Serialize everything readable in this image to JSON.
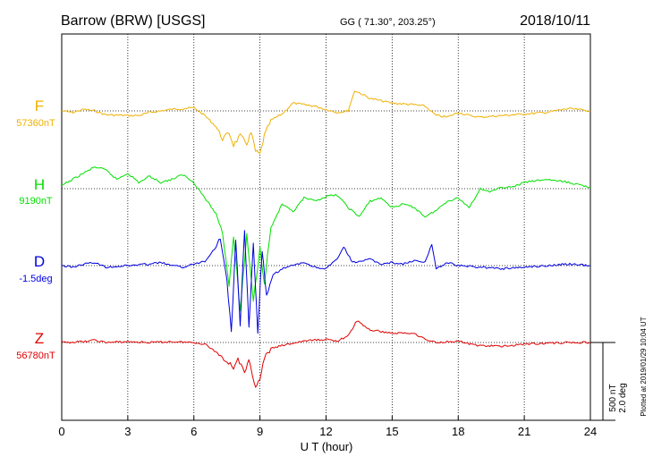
{
  "header": {
    "station": "Barrow (BRW)  [USGS]",
    "coords": "GG ( 71.30°, 203.25°)",
    "date": "2018/10/11"
  },
  "side_note": "Plotted at 2019/01/29 10:04 UT",
  "scale_note": {
    "nt": "500 nT",
    "deg": "2.0 deg"
  },
  "colors": {
    "F": "#f0b000",
    "H": "#00e000",
    "D": "#0000e0",
    "Z": "#e00000"
  },
  "chart_data": {
    "type": "line",
    "title": "Barrow (BRW)  [USGS]",
    "xlabel": "U T (hour)",
    "xlim": [
      0,
      24
    ],
    "xticks": [
      0,
      3,
      6,
      9,
      12,
      15,
      18,
      21,
      24
    ],
    "grid": true,
    "series": [
      {
        "name": "F",
        "baseline_label": "57360nT",
        "baseline_value": 57360,
        "unit": "nT",
        "color": "#f0b000",
        "points": [
          [
            0,
            0
          ],
          [
            0.5,
            -10
          ],
          [
            1,
            10
          ],
          [
            1.5,
            0
          ],
          [
            2,
            -25
          ],
          [
            3,
            -30
          ],
          [
            3.5,
            -30
          ],
          [
            4,
            -10
          ],
          [
            5,
            10
          ],
          [
            6,
            20
          ],
          [
            6.5,
            -30
          ],
          [
            7,
            -100
          ],
          [
            7.3,
            -180
          ],
          [
            7.6,
            -140
          ],
          [
            7.8,
            -220
          ],
          [
            8.1,
            -160
          ],
          [
            8.4,
            -210
          ],
          [
            8.6,
            -140
          ],
          [
            8.8,
            -260
          ],
          [
            9.0,
            -280
          ],
          [
            9.2,
            -160
          ],
          [
            9.5,
            -60
          ],
          [
            10,
            -20
          ],
          [
            10.5,
            50
          ],
          [
            11,
            40
          ],
          [
            11.5,
            30
          ],
          [
            12,
            10
          ],
          [
            12.5,
            -10
          ],
          [
            13,
            0
          ],
          [
            13.3,
            130
          ],
          [
            13.6,
            110
          ],
          [
            14,
            80
          ],
          [
            15,
            50
          ],
          [
            16,
            40
          ],
          [
            16.5,
            30
          ],
          [
            17,
            -30
          ],
          [
            17.5,
            -40
          ],
          [
            18,
            -10
          ],
          [
            18.5,
            -30
          ],
          [
            19,
            -40
          ],
          [
            20,
            -30
          ],
          [
            21,
            -20
          ],
          [
            22,
            -10
          ],
          [
            23,
            15
          ],
          [
            24,
            0
          ]
        ]
      },
      {
        "name": "H",
        "baseline_label": "9190nT",
        "baseline_value": 9190,
        "unit": "nT",
        "color": "#00e000",
        "points": [
          [
            0,
            20
          ],
          [
            0.5,
            60
          ],
          [
            1,
            100
          ],
          [
            1.5,
            140
          ],
          [
            2,
            120
          ],
          [
            2.5,
            60
          ],
          [
            3,
            100
          ],
          [
            3.5,
            40
          ],
          [
            4,
            80
          ],
          [
            4.5,
            40
          ],
          [
            5,
            60
          ],
          [
            5.5,
            90
          ],
          [
            6,
            40
          ],
          [
            6.5,
            -60
          ],
          [
            7,
            -160
          ],
          [
            7.3,
            -280
          ],
          [
            7.6,
            -620
          ],
          [
            7.8,
            -300
          ],
          [
            8.1,
            -780
          ],
          [
            8.4,
            -300
          ],
          [
            8.7,
            -720
          ],
          [
            9,
            -380
          ],
          [
            9.2,
            -600
          ],
          [
            9.5,
            -250
          ],
          [
            10,
            -100
          ],
          [
            10.5,
            -150
          ],
          [
            11,
            -60
          ],
          [
            11.5,
            -80
          ],
          [
            12,
            -50
          ],
          [
            12.5,
            -40
          ],
          [
            13,
            -120
          ],
          [
            13.5,
            -180
          ],
          [
            14,
            -80
          ],
          [
            14.5,
            -60
          ],
          [
            15,
            -120
          ],
          [
            15.5,
            -100
          ],
          [
            16,
            -120
          ],
          [
            16.5,
            -180
          ],
          [
            17,
            -140
          ],
          [
            17.5,
            -80
          ],
          [
            18,
            -60
          ],
          [
            18.5,
            -120
          ],
          [
            19,
            0
          ],
          [
            19.5,
            -20
          ],
          [
            20,
            10
          ],
          [
            20.5,
            10
          ],
          [
            21,
            40
          ],
          [
            22,
            60
          ],
          [
            23,
            40
          ],
          [
            24,
            10
          ]
        ]
      },
      {
        "name": "D",
        "baseline_label": "-1.5deg",
        "baseline_value": -1.5,
        "unit": "deg",
        "color": "#0000e0",
        "points": [
          [
            0,
            0
          ],
          [
            0.5,
            -10
          ],
          [
            1,
            10
          ],
          [
            1.5,
            20
          ],
          [
            2,
            -10
          ],
          [
            3,
            0
          ],
          [
            4,
            10
          ],
          [
            4.5,
            20
          ],
          [
            5,
            0
          ],
          [
            5.5,
            -10
          ],
          [
            6,
            10
          ],
          [
            6.5,
            30
          ],
          [
            7,
            120
          ],
          [
            7.2,
            180
          ],
          [
            7.5,
            -100
          ],
          [
            7.7,
            -420
          ],
          [
            7.9,
            160
          ],
          [
            8.1,
            -380
          ],
          [
            8.3,
            220
          ],
          [
            8.5,
            -400
          ],
          [
            8.7,
            140
          ],
          [
            8.9,
            -430
          ],
          [
            9.1,
            100
          ],
          [
            9.3,
            -200
          ],
          [
            9.6,
            -60
          ],
          [
            10,
            -20
          ],
          [
            10.5,
            0
          ],
          [
            11,
            20
          ],
          [
            11.5,
            -10
          ],
          [
            12,
            -20
          ],
          [
            12.5,
            40
          ],
          [
            12.8,
            120
          ],
          [
            13.2,
            20
          ],
          [
            14,
            40
          ],
          [
            14.5,
            10
          ],
          [
            15,
            20
          ],
          [
            15.5,
            10
          ],
          [
            16,
            30
          ],
          [
            16.5,
            20
          ],
          [
            16.8,
            140
          ],
          [
            17,
            -20
          ],
          [
            17.5,
            20
          ],
          [
            18,
            0
          ],
          [
            19,
            -10
          ],
          [
            20,
            -20
          ],
          [
            21,
            -10
          ],
          [
            22,
            0
          ],
          [
            23,
            10
          ],
          [
            24,
            0
          ]
        ]
      },
      {
        "name": "Z",
        "baseline_label": "56780nT",
        "baseline_value": 56780,
        "unit": "nT",
        "color": "#e00000",
        "points": [
          [
            0,
            0
          ],
          [
            1,
            5
          ],
          [
            1.5,
            15
          ],
          [
            2,
            0
          ],
          [
            3,
            5
          ],
          [
            4,
            0
          ],
          [
            5,
            5
          ],
          [
            6,
            0
          ],
          [
            6.5,
            -10
          ],
          [
            7,
            -60
          ],
          [
            7.5,
            -120
          ],
          [
            7.8,
            -160
          ],
          [
            8,
            -100
          ],
          [
            8.3,
            -200
          ],
          [
            8.5,
            -120
          ],
          [
            8.8,
            -280
          ],
          [
            9,
            -240
          ],
          [
            9.2,
            -100
          ],
          [
            9.5,
            -40
          ],
          [
            10,
            -20
          ],
          [
            11,
            10
          ],
          [
            12,
            20
          ],
          [
            12.5,
            10
          ],
          [
            13,
            40
          ],
          [
            13.4,
            140
          ],
          [
            13.7,
            110
          ],
          [
            14,
            80
          ],
          [
            15,
            60
          ],
          [
            16,
            60
          ],
          [
            16.5,
            20
          ],
          [
            17,
            0
          ],
          [
            18,
            10
          ],
          [
            18.5,
            -10
          ],
          [
            19,
            -20
          ],
          [
            20,
            -25
          ],
          [
            21,
            -10
          ],
          [
            22,
            -5
          ],
          [
            23,
            0
          ],
          [
            24,
            0
          ]
        ]
      }
    ]
  }
}
